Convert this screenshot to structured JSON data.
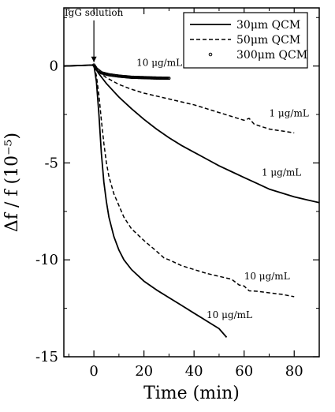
{
  "chart_data": {
    "type": "line",
    "xlabel": "Time (min)",
    "ylabel": "Δf / f (10⁻⁵)",
    "xlim": [
      -12,
      90
    ],
    "ylim": [
      -15,
      3
    ],
    "xticks": [
      {
        "value": 0,
        "label": "0"
      },
      {
        "value": 20,
        "label": "20"
      },
      {
        "value": 40,
        "label": "40"
      },
      {
        "value": 60,
        "label": "60"
      },
      {
        "value": 80,
        "label": "80"
      }
    ],
    "yticks": [
      {
        "value": 0,
        "label": "0"
      },
      {
        "value": -5,
        "label": "-5"
      },
      {
        "value": -10,
        "label": "-10"
      },
      {
        "value": -15,
        "label": "-15"
      }
    ],
    "legend_position": "top-right",
    "series": [
      {
        "name": "30μm QCM",
        "style": "solid",
        "label": "1 μg/mL",
        "points": [
          [
            -12,
            0
          ],
          [
            0,
            0.05
          ],
          [
            0.5,
            -0.1
          ],
          [
            2,
            -0.4
          ],
          [
            5,
            -0.9
          ],
          [
            10,
            -1.6
          ],
          [
            15,
            -2.2
          ],
          [
            20,
            -2.75
          ],
          [
            25,
            -3.25
          ],
          [
            30,
            -3.7
          ],
          [
            35,
            -4.1
          ],
          [
            40,
            -4.45
          ],
          [
            45,
            -4.8
          ],
          [
            50,
            -5.15
          ],
          [
            55,
            -5.45
          ],
          [
            60,
            -5.75
          ],
          [
            65,
            -6.05
          ],
          [
            70,
            -6.35
          ],
          [
            75,
            -6.55
          ],
          [
            80,
            -6.75
          ],
          [
            85,
            -6.9
          ],
          [
            90,
            -7.05
          ]
        ]
      },
      {
        "name": "50μm QCM",
        "style": "dashed",
        "label": "1 μg/mL",
        "points": [
          [
            -12,
            0
          ],
          [
            0,
            0.05
          ],
          [
            1,
            -0.1
          ],
          [
            3,
            -0.4
          ],
          [
            5,
            -0.6
          ],
          [
            10,
            -0.95
          ],
          [
            15,
            -1.2
          ],
          [
            20,
            -1.4
          ],
          [
            25,
            -1.55
          ],
          [
            30,
            -1.7
          ],
          [
            35,
            -1.85
          ],
          [
            40,
            -2.0
          ],
          [
            45,
            -2.2
          ],
          [
            50,
            -2.4
          ],
          [
            55,
            -2.6
          ],
          [
            60,
            -2.8
          ],
          [
            62,
            -2.7
          ],
          [
            64,
            -3.0
          ],
          [
            70,
            -3.25
          ],
          [
            75,
            -3.35
          ],
          [
            80,
            -3.45
          ]
        ]
      },
      {
        "name": "300μm QCM",
        "style": "circles",
        "label": "10 μg/mL",
        "points": [
          [
            0,
            0.05
          ],
          [
            1,
            -0.15
          ],
          [
            3,
            -0.35
          ],
          [
            6,
            -0.45
          ],
          [
            10,
            -0.52
          ],
          [
            15,
            -0.58
          ],
          [
            20,
            -0.6
          ],
          [
            25,
            -0.62
          ],
          [
            30,
            -0.63
          ]
        ]
      },
      {
        "name": "30μm QCM",
        "style": "solid",
        "label": "10 μg/mL",
        "points": [
          [
            -12,
            0
          ],
          [
            0,
            0.05
          ],
          [
            1,
            -0.8
          ],
          [
            2,
            -2.5
          ],
          [
            3,
            -4.5
          ],
          [
            4,
            -6.0
          ],
          [
            5,
            -7.0
          ],
          [
            6,
            -7.8
          ],
          [
            8,
            -8.8
          ],
          [
            10,
            -9.5
          ],
          [
            12,
            -10.0
          ],
          [
            15,
            -10.5
          ],
          [
            20,
            -11.1
          ],
          [
            25,
            -11.55
          ],
          [
            30,
            -11.95
          ],
          [
            35,
            -12.35
          ],
          [
            40,
            -12.75
          ],
          [
            45,
            -13.15
          ],
          [
            50,
            -13.55
          ],
          [
            53,
            -14.0
          ]
        ]
      },
      {
        "name": "50μm QCM",
        "style": "dashed",
        "label": "10 μg/mL",
        "points": [
          [
            -12,
            0
          ],
          [
            0,
            0.05
          ],
          [
            1,
            -0.5
          ],
          [
            2,
            -1.5
          ],
          [
            3,
            -2.8
          ],
          [
            4,
            -4.0
          ],
          [
            5,
            -5.0
          ],
          [
            6,
            -5.7
          ],
          [
            8,
            -6.6
          ],
          [
            10,
            -7.2
          ],
          [
            12,
            -7.8
          ],
          [
            15,
            -8.4
          ],
          [
            20,
            -9.0
          ],
          [
            25,
            -9.55
          ],
          [
            28,
            -9.9
          ],
          [
            30,
            -10.0
          ],
          [
            35,
            -10.3
          ],
          [
            40,
            -10.5
          ],
          [
            45,
            -10.7
          ],
          [
            50,
            -10.85
          ],
          [
            55,
            -11.0
          ],
          [
            58,
            -11.3
          ],
          [
            60,
            -11.35
          ],
          [
            62,
            -11.6
          ],
          [
            65,
            -11.62
          ],
          [
            70,
            -11.7
          ],
          [
            75,
            -11.78
          ],
          [
            80,
            -11.9
          ]
        ]
      }
    ],
    "annotations": [
      {
        "text": "IgG solution",
        "x": 0,
        "y": 2.6,
        "kind": "arrow",
        "arrow_to": 0.2
      },
      {
        "text": "10 μg/mL",
        "x": 17,
        "y": 0.0
      },
      {
        "text": "1 μg/mL",
        "x": 70,
        "y": -2.6
      },
      {
        "text": "1 μg/mL",
        "x": 67,
        "y": -5.65
      },
      {
        "text": "10 μg/mL",
        "x": 60,
        "y": -11.0
      },
      {
        "text": "10 μg/mL",
        "x": 45,
        "y": -13.0
      }
    ]
  }
}
